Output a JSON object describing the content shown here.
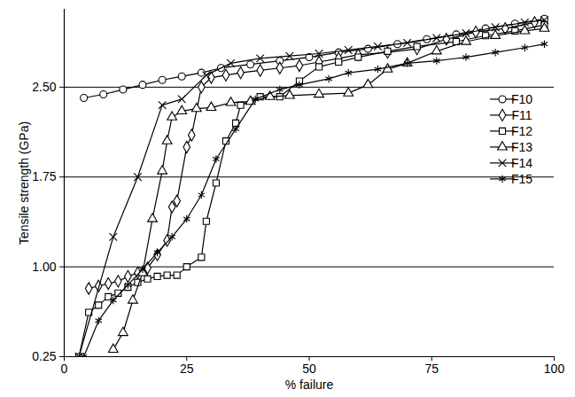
{
  "chart_data": {
    "type": "line",
    "x_label": "% failure",
    "y_label": "Tensile strength (GPa)",
    "xlim": [
      0,
      100
    ],
    "xticks": [
      0,
      25,
      50,
      75,
      100
    ],
    "ylim": [
      0.25,
      3.15
    ],
    "yticks": [
      0.25,
      {
        "value": 1,
        "label": "1.00"
      },
      1.75,
      {
        "value": 2.5,
        "label": "2.50"
      }
    ],
    "grid": true,
    "legend": "right",
    "series": [
      {
        "name": "F10",
        "color": "#000000",
        "marker": "circle",
        "x": [
          4,
          8,
          12,
          16,
          20,
          24,
          28,
          32,
          38,
          44,
          50,
          56,
          62,
          68,
          74,
          80,
          86,
          92,
          98
        ],
        "values": [
          2.41,
          2.44,
          2.48,
          2.52,
          2.56,
          2.59,
          2.62,
          2.66,
          2.69,
          2.72,
          2.75,
          2.79,
          2.82,
          2.86,
          2.9,
          2.94,
          2.99,
          3.03,
          3.07
        ]
      },
      {
        "name": "F11",
        "color": "#000000",
        "marker": "diamond",
        "x": [
          5,
          7,
          9,
          11,
          13,
          15,
          17,
          19,
          21,
          22,
          23,
          25,
          26,
          28,
          30,
          33,
          36,
          40,
          44,
          48,
          52,
          56,
          60,
          66,
          72,
          78,
          84,
          90,
          96
        ],
        "values": [
          0.82,
          0.84,
          0.86,
          0.88,
          0.92,
          0.95,
          0.99,
          1.1,
          1.22,
          1.5,
          1.55,
          2.0,
          2.1,
          2.5,
          2.58,
          2.6,
          2.62,
          2.64,
          2.66,
          2.68,
          2.71,
          2.74,
          2.77,
          2.79,
          2.82,
          2.9,
          2.96,
          2.99,
          3.04
        ]
      },
      {
        "name": "F12",
        "color": "#000000",
        "marker": "square",
        "x": [
          3,
          5,
          7,
          9,
          11,
          13,
          15,
          17,
          19,
          21,
          23,
          25,
          28,
          29,
          31,
          33,
          35,
          36,
          40,
          44,
          48,
          52,
          56,
          60,
          66,
          72,
          80,
          86,
          92,
          98
        ],
        "values": [
          0.25,
          0.62,
          0.68,
          0.75,
          0.78,
          0.83,
          0.87,
          0.9,
          0.92,
          0.93,
          0.93,
          1.0,
          1.08,
          1.38,
          1.7,
          2.05,
          2.2,
          2.35,
          2.42,
          2.42,
          2.55,
          2.67,
          2.71,
          2.75,
          2.8,
          2.84,
          2.88,
          2.93,
          2.97,
          3.02
        ]
      },
      {
        "name": "F13",
        "color": "#000000",
        "marker": "triangle",
        "x": [
          10,
          12,
          14,
          16,
          18,
          20,
          21,
          22,
          24,
          27,
          30,
          34,
          38,
          42,
          46,
          52,
          58,
          62,
          66,
          70,
          76,
          82,
          88,
          94,
          98
        ],
        "values": [
          0.31,
          0.45,
          0.72,
          0.95,
          1.4,
          1.8,
          2.05,
          2.25,
          2.3,
          2.32,
          2.33,
          2.37,
          2.38,
          2.42,
          2.43,
          2.44,
          2.45,
          2.52,
          2.65,
          2.7,
          2.8,
          2.88,
          2.93,
          2.97,
          2.99
        ]
      },
      {
        "name": "F14",
        "color": "#000000",
        "marker": "times",
        "x": [
          3,
          10,
          15,
          20,
          24,
          29,
          34,
          40,
          46,
          52,
          58,
          64,
          70,
          76,
          82,
          88,
          94,
          98
        ],
        "values": [
          0.25,
          1.25,
          1.75,
          2.35,
          2.4,
          2.6,
          2.7,
          2.74,
          2.76,
          2.78,
          2.81,
          2.84,
          2.87,
          2.91,
          2.95,
          3.0,
          3.04,
          3.06
        ]
      },
      {
        "name": "F15",
        "color": "#000000",
        "marker": "asterisk",
        "x": [
          4,
          7,
          10,
          13,
          16,
          19,
          22,
          25,
          28,
          31,
          35,
          39,
          44,
          48,
          54,
          58,
          64,
          70,
          76,
          82,
          88,
          94,
          98
        ],
        "values": [
          0.25,
          0.55,
          0.72,
          0.85,
          0.98,
          1.12,
          1.25,
          1.4,
          1.6,
          1.9,
          2.15,
          2.4,
          2.48,
          2.52,
          2.57,
          2.62,
          2.65,
          2.7,
          2.72,
          2.75,
          2.79,
          2.83,
          2.86
        ]
      }
    ]
  }
}
